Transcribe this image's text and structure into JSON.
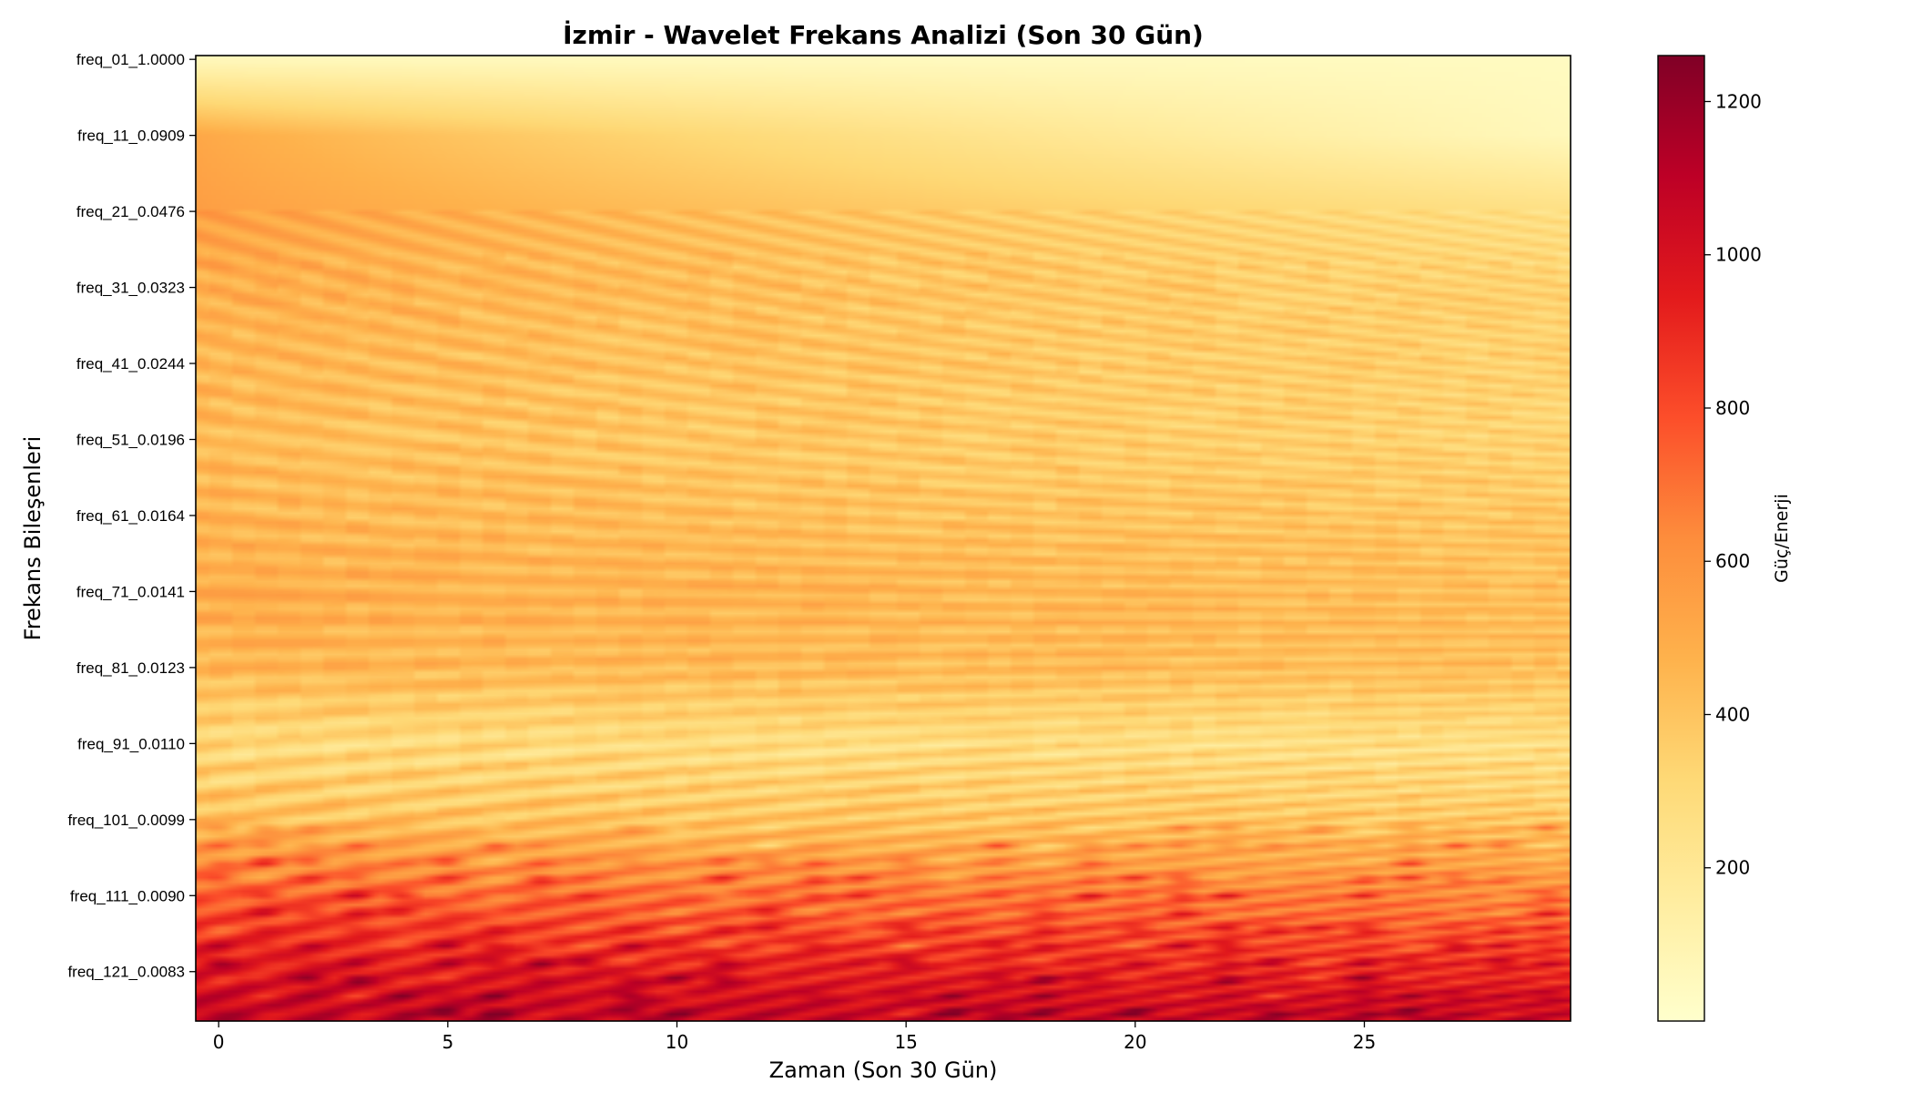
{
  "chart_data": {
    "type": "heatmap",
    "title": "İzmir - Wavelet Frekans Analizi (Son 30 Gün)",
    "xlabel": "Zaman (Son 30 Gün)",
    "ylabel": "Frekans Bileşenleri",
    "x_range": [
      0,
      29
    ],
    "x_ticks": [
      0,
      5,
      10,
      15,
      20,
      25
    ],
    "y_tick_labels": [
      "freq_01_1.0000",
      "freq_11_0.0909",
      "freq_21_0.0476",
      "freq_31_0.0323",
      "freq_41_0.0244",
      "freq_51_0.0196",
      "freq_61_0.0164",
      "freq_71_0.0141",
      "freq_81_0.0123",
      "freq_91_0.0110",
      "freq_101_0.0099",
      "freq_111_0.0090",
      "freq_121_0.0083"
    ],
    "n_frequencies": 127,
    "colormap": "YlOrRd",
    "colorbar": {
      "label": "Güç/Enerji",
      "range": [
        0,
        1260
      ],
      "ticks": [
        200,
        400,
        600,
        800,
        1000,
        1200
      ]
    },
    "row_profile": {
      "description_rows": [
        0,
        10,
        20,
        30,
        40,
        50,
        60,
        70,
        80,
        90,
        100,
        110,
        120,
        126
      ],
      "approx_power_at_day0": [
        60,
        520,
        560,
        500,
        460,
        440,
        460,
        500,
        460,
        300,
        420,
        760,
        980,
        1080
      ],
      "approx_power_at_day29": [
        40,
        60,
        260,
        330,
        340,
        330,
        380,
        420,
        420,
        260,
        380,
        640,
        900,
        1060
      ]
    }
  }
}
